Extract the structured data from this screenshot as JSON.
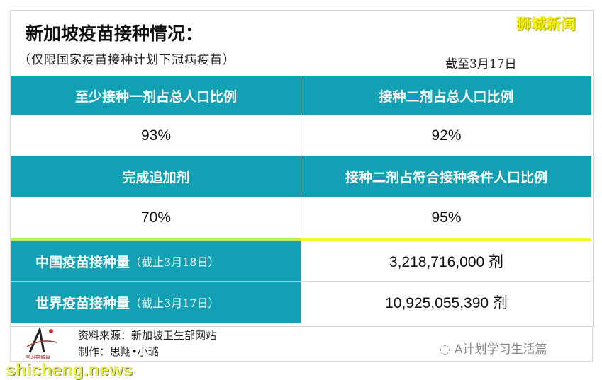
{
  "header": {
    "title": "新加坡疫苗接种情况：",
    "subtitle": "（仅限国家疫苗接种计划下冠病疫苗）",
    "as_of": "截至3月17日",
    "brand": "狮城新闻"
  },
  "stats": [
    {
      "label": "至少接种一剂占总人口比例",
      "value": "93%"
    },
    {
      "label": "接种二剂占总人口比例",
      "value": "92%"
    },
    {
      "label": "完成追加剂",
      "value": "70%"
    },
    {
      "label": "接种二剂占符合接种条件人口比例",
      "value": "95%"
    }
  ],
  "totals": [
    {
      "label": "中国疫苗接种量",
      "note": "（截止3月18日）",
      "value": "3,218,716,000 剂"
    },
    {
      "label": "世界疫苗接种量",
      "note": "（截止3月17日）",
      "value": "10,925,055,390 剂"
    }
  ],
  "footer": {
    "source": "资料来源：新加坡卫生部网站",
    "maker": "制作：思翔•小璐",
    "logo_text": "学习群城篇",
    "wechat_account": "A计划学习生活篇",
    "watermark": "shicheng.news"
  },
  "colors": {
    "header_teal": "#11a0b4",
    "accent_yellow": "#f5f53a"
  }
}
